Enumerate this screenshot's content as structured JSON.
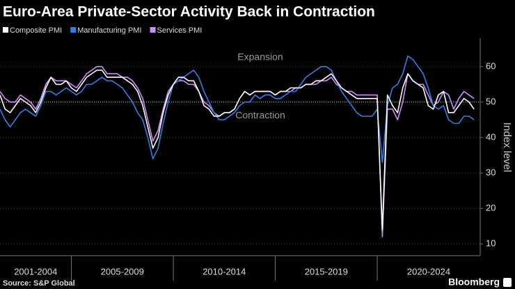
{
  "chart_data": {
    "type": "line",
    "title": "Euro-Area Private-Sector Activity Back in Contraction",
    "y_label": "Index level",
    "annotations": [
      "Expansion",
      "Contraction"
    ],
    "source": "Source: S&P Global",
    "brand": "Bloomberg",
    "x": [
      2001.5,
      2001.75,
      2002,
      2002.25,
      2002.5,
      2002.75,
      2003,
      2003.25,
      2003.5,
      2003.75,
      2004,
      2004.25,
      2004.5,
      2004.75,
      2005,
      2005.25,
      2005.5,
      2005.75,
      2006,
      2006.25,
      2006.5,
      2006.75,
      2007,
      2007.25,
      2007.5,
      2007.75,
      2008,
      2008.25,
      2008.5,
      2008.75,
      2009,
      2009.25,
      2009.5,
      2009.75,
      2010,
      2010.25,
      2010.5,
      2010.75,
      2011,
      2011.25,
      2011.5,
      2011.75,
      2012,
      2012.25,
      2012.5,
      2012.75,
      2013,
      2013.25,
      2013.5,
      2013.75,
      2014,
      2014.25,
      2014.5,
      2014.75,
      2015,
      2015.25,
      2015.5,
      2015.75,
      2016,
      2016.25,
      2016.5,
      2016.75,
      2017,
      2017.25,
      2017.5,
      2017.75,
      2018,
      2018.25,
      2018.5,
      2018.75,
      2019,
      2019.25,
      2019.5,
      2019.75,
      2020,
      2020.25,
      2020.5,
      2020.75,
      2021,
      2021.25,
      2021.5,
      2021.75,
      2022,
      2022.25,
      2022.5,
      2022.75,
      2023,
      2023.25,
      2023.5,
      2023.75,
      2024,
      2024.25,
      2024.5,
      2024.75
    ],
    "xlim": [
      2001.5,
      2025.05
    ],
    "x_dividers": [
      2005,
      2010,
      2015,
      2020
    ],
    "x_band_labels": [
      "2001-2004",
      "2005-2009",
      "2010-2014",
      "2015-2019",
      "2020-2024"
    ],
    "ylim": [
      6.7,
      68
    ],
    "yticks": [
      10,
      20,
      30,
      40,
      50,
      60
    ],
    "grid": true,
    "reference_line": 50,
    "series": [
      {
        "name": "Composite PMI",
        "color": "#ffffff",
        "values": [
          52,
          48,
          47,
          49,
          51,
          50,
          49,
          47,
          50,
          54,
          57,
          55,
          55,
          56,
          54,
          53,
          55,
          57,
          58,
          59,
          59,
          57,
          57,
          57,
          57,
          56,
          55,
          53,
          49,
          43,
          37,
          40,
          47,
          52,
          55,
          57,
          57,
          56,
          56,
          53,
          49,
          48,
          46,
          46,
          47,
          47,
          48,
          51,
          53,
          52,
          53,
          53,
          53,
          53,
          52,
          53,
          53,
          54,
          54,
          54,
          55,
          55,
          56,
          56,
          57,
          58,
          56,
          54,
          53,
          52,
          51,
          51,
          51,
          51,
          51,
          14,
          52,
          49,
          47,
          54,
          58,
          56,
          55,
          54,
          49,
          48,
          52,
          53,
          47,
          47,
          49,
          51,
          50,
          48
        ]
      },
      {
        "name": "Manufacturing PMI",
        "color": "#2f80e8",
        "values": [
          48,
          45,
          43,
          45,
          47,
          48,
          47,
          46,
          49,
          53,
          53,
          52,
          53,
          54,
          53,
          52,
          53,
          55,
          55,
          56,
          57,
          56,
          56,
          55,
          54,
          52,
          50,
          47,
          45,
          40,
          34,
          37,
          44,
          50,
          55,
          56,
          57,
          58,
          59,
          57,
          53,
          50,
          47,
          45,
          45,
          46,
          47,
          49,
          50,
          50,
          52,
          51,
          52,
          52,
          51,
          51,
          52,
          53,
          53,
          55,
          57,
          58,
          59,
          60,
          60,
          59,
          56,
          53,
          51,
          49,
          47,
          46,
          46,
          46,
          48,
          33,
          49,
          54,
          55,
          58,
          63,
          62,
          60,
          58,
          54,
          49,
          48,
          49,
          45,
          44,
          44,
          46,
          46,
          45
        ]
      },
      {
        "name": "Services PMI",
        "color": "#cf8cff",
        "values": [
          53,
          51,
          50,
          50,
          52,
          51,
          50,
          48,
          51,
          55,
          57,
          56,
          56,
          56,
          55,
          54,
          56,
          58,
          59,
          60,
          60,
          58,
          58,
          58,
          57,
          57,
          56,
          54,
          51,
          45,
          39,
          42,
          48,
          53,
          55,
          56,
          56,
          55,
          55,
          53,
          50,
          49,
          47,
          46,
          47,
          47,
          48,
          51,
          53,
          52,
          53,
          53,
          53,
          53,
          52,
          53,
          53,
          53,
          54,
          54,
          55,
          55,
          55,
          56,
          56,
          57,
          55,
          54,
          53,
          53,
          52,
          52,
          52,
          52,
          52,
          12,
          48,
          48,
          45,
          50,
          58,
          56,
          55,
          55,
          52,
          49,
          50,
          53,
          52,
          48,
          51,
          53,
          52,
          51
        ]
      }
    ]
  }
}
